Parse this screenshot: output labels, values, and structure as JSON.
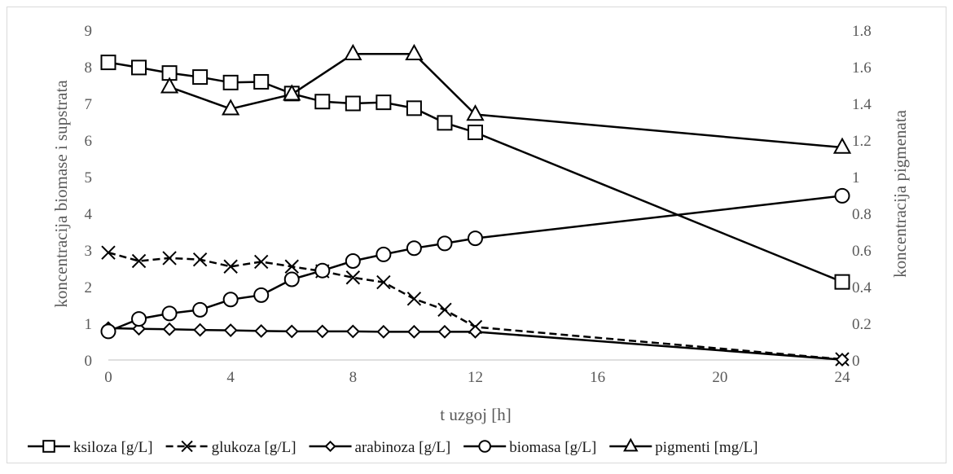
{
  "chart_data": {
    "type": "line",
    "xlabel": "t uzgoj [h]",
    "ylabel_left": "koncentracija biomase i supstrata",
    "ylabel_right": "koncentracija pigmenata",
    "xlim": [
      0,
      24
    ],
    "ylim_left": [
      0,
      9
    ],
    "ylim_right": [
      0,
      1.8
    ],
    "x_ticks": [
      0,
      4,
      8,
      12,
      16,
      20,
      24
    ],
    "y_ticks_left": [
      0,
      1,
      2,
      3,
      4,
      5,
      6,
      7,
      8,
      9
    ],
    "y_ticks_right": [
      0,
      0.2,
      0.4,
      0.6,
      0.8,
      1,
      1.2,
      1.4,
      1.6,
      1.8
    ],
    "grid": false,
    "legend_position": "bottom",
    "series": [
      {
        "name": "ksiloza [g/L]",
        "marker": "square",
        "axis": "left",
        "color": "#000000",
        "line": "solid",
        "points": [
          [
            0,
            8.12
          ],
          [
            1,
            7.98
          ],
          [
            2,
            7.83
          ],
          [
            3,
            7.72
          ],
          [
            4,
            7.57
          ],
          [
            5,
            7.59
          ],
          [
            6,
            7.27
          ],
          [
            7,
            7.05
          ],
          [
            8,
            7.0
          ],
          [
            9,
            7.03
          ],
          [
            10,
            6.87
          ],
          [
            11,
            6.47
          ],
          [
            12,
            6.21
          ],
          [
            24,
            2.13
          ]
        ]
      },
      {
        "name": "glukoza [g/L]",
        "marker": "x",
        "axis": "left",
        "color": "#000000",
        "line": "dashed",
        "points": [
          [
            0,
            2.93
          ],
          [
            1,
            2.7
          ],
          [
            2,
            2.78
          ],
          [
            3,
            2.74
          ],
          [
            4,
            2.55
          ],
          [
            5,
            2.68
          ],
          [
            6,
            2.55
          ],
          [
            7,
            2.42
          ],
          [
            8,
            2.25
          ],
          [
            9,
            2.12
          ],
          [
            10,
            1.67
          ],
          [
            11,
            1.37
          ],
          [
            12,
            0.9
          ],
          [
            24,
            0.02
          ]
        ]
      },
      {
        "name": "arabinoza [g/L]",
        "marker": "diamond",
        "axis": "left",
        "color": "#000000",
        "line": "solid",
        "points": [
          [
            0,
            0.87
          ],
          [
            1,
            0.85
          ],
          [
            2,
            0.84
          ],
          [
            3,
            0.82
          ],
          [
            4,
            0.81
          ],
          [
            5,
            0.79
          ],
          [
            6,
            0.78
          ],
          [
            7,
            0.78
          ],
          [
            8,
            0.78
          ],
          [
            9,
            0.77
          ],
          [
            10,
            0.77
          ],
          [
            11,
            0.77
          ],
          [
            12,
            0.77
          ],
          [
            24,
            0.01
          ]
        ]
      },
      {
        "name": "biomasa [g/L]",
        "marker": "circle",
        "axis": "left",
        "color": "#000000",
        "line": "solid",
        "points": [
          [
            0,
            0.78
          ],
          [
            1,
            1.12
          ],
          [
            2,
            1.27
          ],
          [
            3,
            1.37
          ],
          [
            4,
            1.65
          ],
          [
            5,
            1.77
          ],
          [
            6,
            2.2
          ],
          [
            7,
            2.44
          ],
          [
            8,
            2.7
          ],
          [
            9,
            2.88
          ],
          [
            10,
            3.05
          ],
          [
            11,
            3.18
          ],
          [
            12,
            3.32
          ],
          [
            24,
            4.48
          ]
        ]
      },
      {
        "name": "pigmenti [mg/L]",
        "marker": "triangle",
        "axis": "right",
        "color": "#000000",
        "line": "solid",
        "points": [
          [
            2,
            1.49
          ],
          [
            4,
            1.37
          ],
          [
            6,
            1.45
          ],
          [
            8,
            1.67
          ],
          [
            10,
            1.67
          ],
          [
            12,
            1.34
          ],
          [
            24,
            1.16
          ]
        ]
      }
    ]
  }
}
